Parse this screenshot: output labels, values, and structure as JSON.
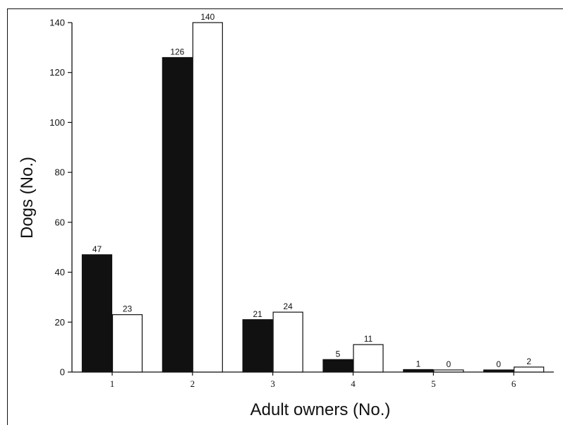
{
  "chart_data": {
    "type": "bar",
    "title": "",
    "xlabel": "Adult owners (No.)",
    "ylabel": "Dogs (No.)",
    "ylim": [
      0,
      140
    ],
    "yticks": [
      0,
      20,
      40,
      60,
      80,
      100,
      120,
      140
    ],
    "categories": [
      "1",
      "2",
      "3",
      "4",
      "5",
      "6"
    ],
    "series": [
      {
        "color": "#111111",
        "values": [
          47,
          126,
          21,
          5,
          1,
          0
        ],
        "labels": [
          "47",
          "126",
          "21",
          "5",
          "1",
          "0"
        ]
      },
      {
        "color": "#ffffff",
        "values": [
          23,
          140,
          24,
          11,
          0,
          2
        ],
        "labels": [
          "23",
          "140",
          "24",
          "11",
          "0",
          "2"
        ]
      }
    ],
    "grid": false,
    "legend": "none"
  }
}
